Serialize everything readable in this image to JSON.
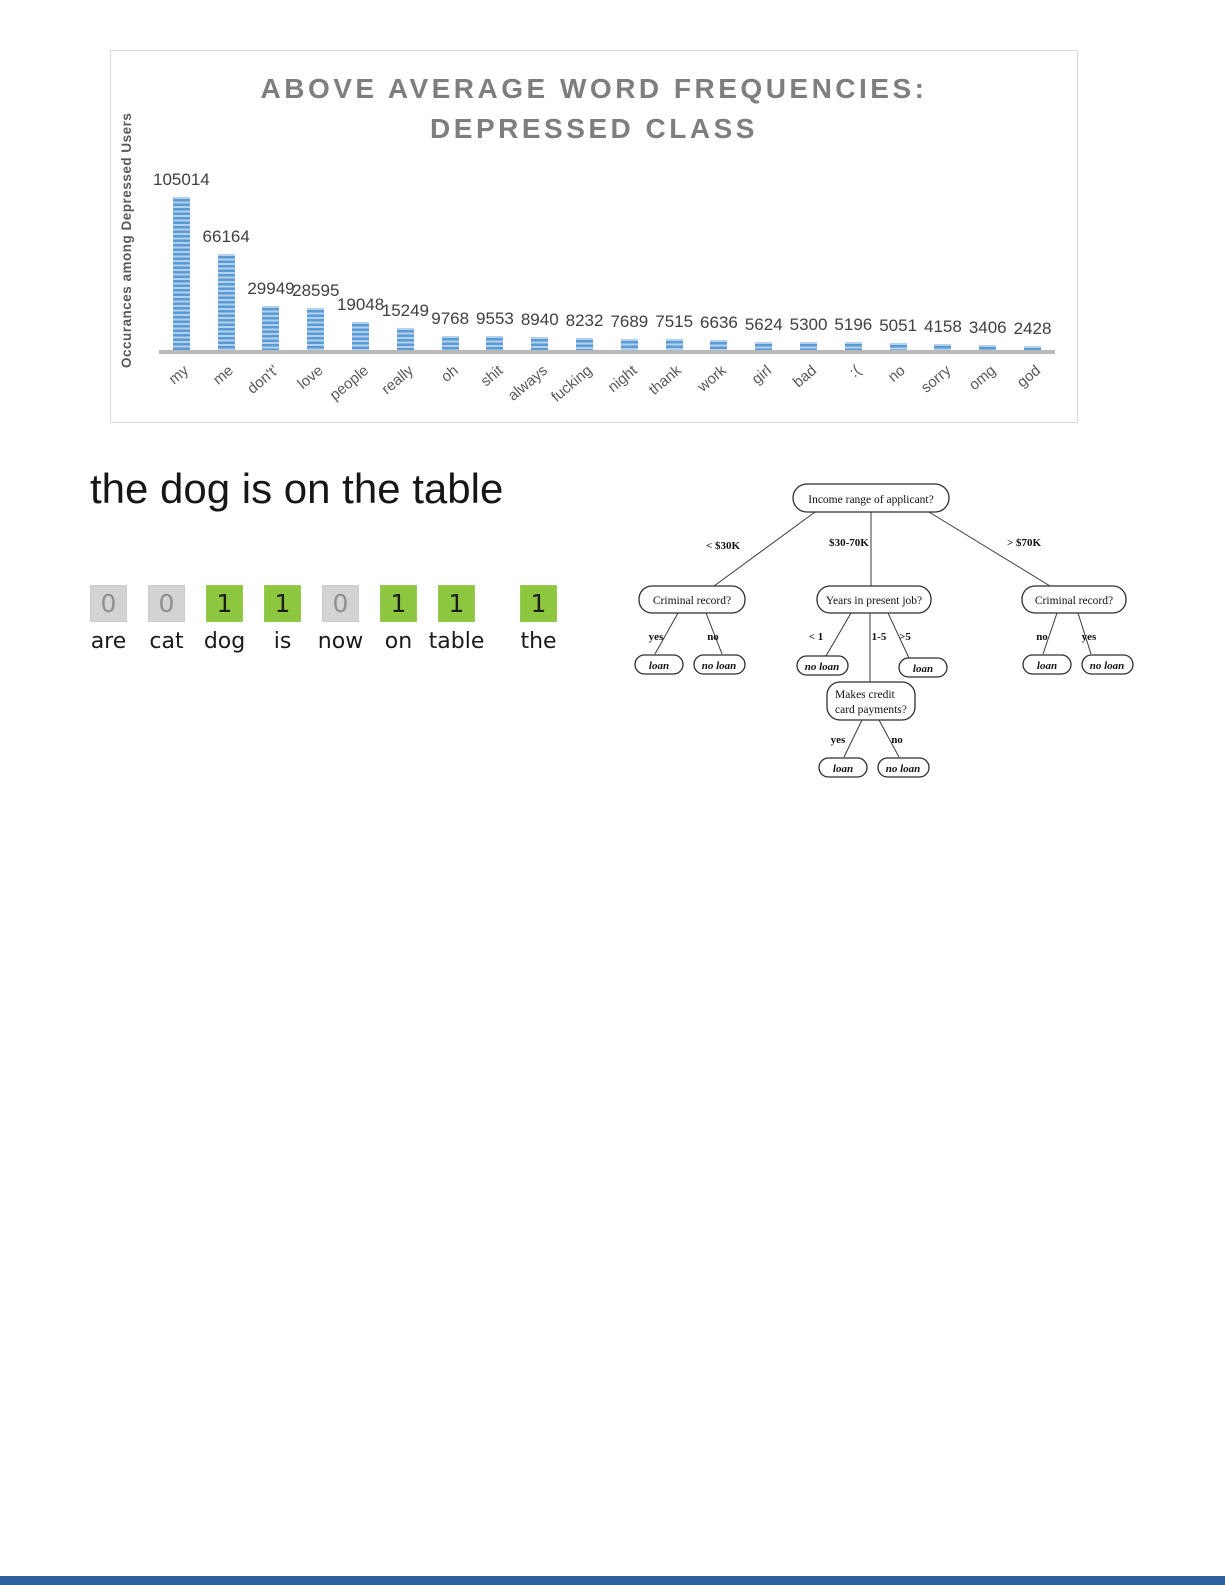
{
  "chart_data": {
    "type": "bar",
    "title": "ABOVE AVERAGE WORD FREQUENCIES: DEPRESSED CLASS",
    "title_line1": "ABOVE AVERAGE WORD FREQUENCIES:",
    "title_line2": "DEPRESSED CLASS",
    "ylabel": "Occurances among Depressed Users",
    "xlabel": "",
    "categories": [
      "my",
      "me",
      "don't'",
      "love",
      "people",
      "really",
      "oh",
      "shit",
      "always",
      "fucking",
      "night",
      "thank",
      "work",
      "girl",
      "bad",
      ":(",
      "no",
      "sorry",
      "omg",
      "god"
    ],
    "values": [
      105014,
      66164,
      29949,
      28595,
      19048,
      15249,
      9768,
      9553,
      8940,
      8232,
      7689,
      7515,
      6636,
      5624,
      5300,
      5196,
      5051,
      4158,
      3406,
      2428
    ],
    "ylim": [
      0,
      110000
    ],
    "grid": false,
    "legend": false,
    "bar_color": "#5b9bd5",
    "bar_stripe_color": "#b3d1ec",
    "axis_color": "#b9b9b9"
  },
  "bag_of_words": {
    "sentence": "the dog is on the table",
    "present_color": "#8dc63f",
    "absent_color": "#d3d3d3",
    "vocabulary": [
      {
        "word": "are",
        "value": "0",
        "present": false
      },
      {
        "word": "cat",
        "value": "0",
        "present": false
      },
      {
        "word": "dog",
        "value": "1",
        "present": true
      },
      {
        "word": "is",
        "value": "1",
        "present": true
      },
      {
        "word": "now",
        "value": "0",
        "present": false
      },
      {
        "word": "on",
        "value": "1",
        "present": true
      },
      {
        "word": "table",
        "value": "1",
        "present": true
      },
      {
        "word": "the",
        "value": "1",
        "present": true
      }
    ]
  },
  "decision_tree": {
    "root_label": "Income range of applicant?",
    "edges_level1": [
      "< $30K",
      "$30-70K",
      "> $70K"
    ],
    "left_node": {
      "label": "Criminal record?",
      "yes_edge": "yes",
      "no_edge": "no",
      "yes_leaf": "loan",
      "no_leaf": "no loan"
    },
    "mid_node": {
      "label": "Years in present job?",
      "edge_lt1": "< 1",
      "edge_1to5": "1-5",
      "edge_gt5": ">5",
      "lt1_leaf": "no loan",
      "gt5_leaf": "loan"
    },
    "credit_node": {
      "label_line1": "Makes credit",
      "label_line2": "card payments?",
      "yes_edge": "yes",
      "no_edge": "no",
      "yes_leaf": "loan",
      "no_leaf": "no loan"
    },
    "right_node": {
      "label": "Criminal record?",
      "no_edge": "no",
      "yes_edge": "yes",
      "no_leaf": "loan",
      "yes_leaf": "no loan"
    }
  },
  "footer": {
    "bar_color": "#2e5f9e"
  }
}
